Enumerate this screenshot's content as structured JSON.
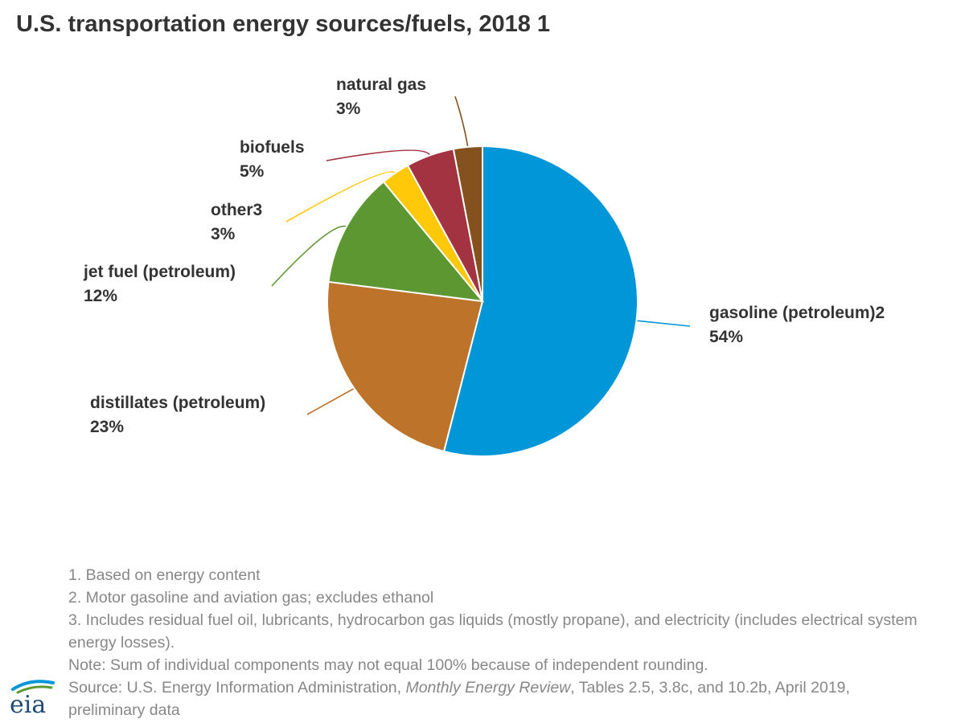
{
  "title": "U.S. transportation energy sources/fuels, 2018 1",
  "chart_data": {
    "type": "pie",
    "title": "U.S. transportation energy sources/fuels, 2018 1",
    "start_angle_deg": 0,
    "direction": "clockwise",
    "slices": [
      {
        "label": "gasoline (petroleum)2",
        "value": 54,
        "value_label": "54%",
        "color": "#0096d7"
      },
      {
        "label": "distillates (petroleum)",
        "value": 23,
        "value_label": "23%",
        "color": "#bd732a"
      },
      {
        "label": "jet fuel (petroleum)",
        "value": 12,
        "value_label": "12%",
        "color": "#5d9732"
      },
      {
        "label": "other3",
        "value": 3,
        "value_label": "3%",
        "color": "#ffc808"
      },
      {
        "label": "biofuels",
        "value": 5,
        "value_label": "5%",
        "color": "#a33340"
      },
      {
        "label": "natural gas",
        "value": 3,
        "value_label": "3%",
        "color": "#85511e"
      }
    ]
  },
  "footnotes": {
    "note1": "1. Based on energy content",
    "note2": "2. Motor gasoline and aviation gas; excludes ethanol",
    "note3": "3. Includes residual fuel oil, lubricants, hydrocarbon gas liquids (mostly propane), and electricity (includes electrical system energy losses).",
    "note4": "Note: Sum of individual components may not equal 100% because of independent rounding.",
    "source_prefix": "Source: U.S. Energy Information Administration, ",
    "source_title": "Monthly Energy Review",
    "source_suffix": ", Tables 2.5, 3.8c, and 10.2b, April 2019, preliminary data"
  },
  "logo": {
    "text": "eia",
    "colors": [
      "#1f4a73",
      "#0096d7",
      "#5d9732"
    ]
  }
}
